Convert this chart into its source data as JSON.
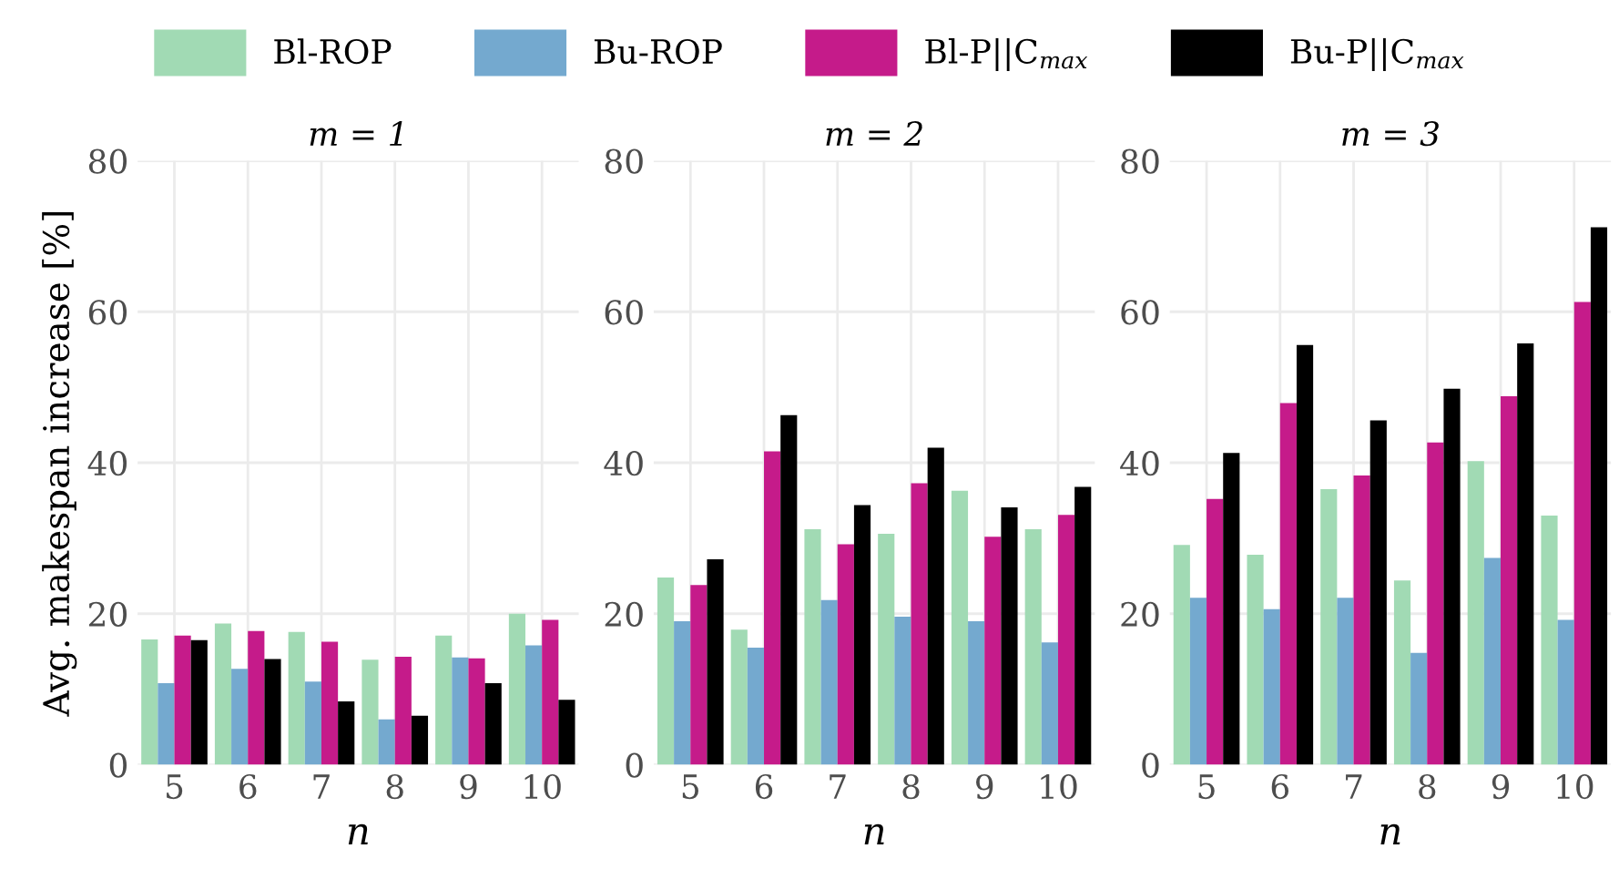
{
  "chart_data": [
    {
      "type": "bar",
      "title": "m = 1",
      "xlabel": "n",
      "ylabel": "Avg. makespan increase [%]",
      "categories": [
        "5",
        "6",
        "7",
        "8",
        "9",
        "10"
      ],
      "ylim": [
        0,
        80
      ],
      "yticks": [
        0,
        20,
        40,
        60,
        80
      ],
      "grid": true,
      "legend": "top",
      "series": [
        {
          "name": "Bl-ROP",
          "color": "#a1dab4",
          "values": [
            16.6,
            18.7,
            17.6,
            13.9,
            17.1,
            20.0
          ]
        },
        {
          "name": "Bu-ROP",
          "color": "#74a9cf",
          "values": [
            10.8,
            12.7,
            11.0,
            6.0,
            14.2,
            15.8
          ]
        },
        {
          "name": "Bl-P||C$_{max}$",
          "color": "#c51b8a",
          "values": [
            17.1,
            17.7,
            16.3,
            14.3,
            14.1,
            19.2
          ]
        },
        {
          "name": "Bu-P||C$_{max}$",
          "color": "#000000",
          "values": [
            16.5,
            14.0,
            8.4,
            6.5,
            10.8,
            8.6
          ]
        }
      ]
    },
    {
      "type": "bar",
      "title": "m = 2",
      "xlabel": "n",
      "categories": [
        "5",
        "6",
        "7",
        "8",
        "9",
        "10"
      ],
      "ylim": [
        0,
        80
      ],
      "yticks": [
        0,
        20,
        40,
        60,
        80
      ],
      "grid": true,
      "series": [
        {
          "color": "#a1dab4",
          "values": [
            24.8,
            17.9,
            31.2,
            30.6,
            36.3,
            31.2
          ]
        },
        {
          "color": "#74a9cf",
          "values": [
            19.0,
            15.5,
            21.8,
            19.6,
            19.0,
            16.2
          ]
        },
        {
          "color": "#c51b8a",
          "values": [
            23.8,
            41.5,
            29.2,
            37.3,
            30.2,
            33.1
          ]
        },
        {
          "color": "#000000",
          "values": [
            27.2,
            46.3,
            34.4,
            42.0,
            34.1,
            36.8
          ]
        }
      ]
    },
    {
      "type": "bar",
      "title": "m = 3",
      "xlabel": "n",
      "categories": [
        "5",
        "6",
        "7",
        "8",
        "9",
        "10"
      ],
      "ylim": [
        0,
        80
      ],
      "yticks": [
        0,
        20,
        40,
        60,
        80
      ],
      "grid": true,
      "series": [
        {
          "color": "#a1dab4",
          "values": [
            29.1,
            27.8,
            36.5,
            24.4,
            40.2,
            33.0
          ]
        },
        {
          "color": "#74a9cf",
          "values": [
            22.1,
            20.6,
            22.1,
            14.8,
            27.4,
            19.2
          ]
        },
        {
          "color": "#c51b8a",
          "values": [
            35.2,
            47.9,
            38.3,
            42.7,
            48.8,
            61.3
          ]
        },
        {
          "color": "#000000",
          "values": [
            41.3,
            55.6,
            45.6,
            49.8,
            55.8,
            71.2
          ]
        }
      ]
    }
  ]
}
